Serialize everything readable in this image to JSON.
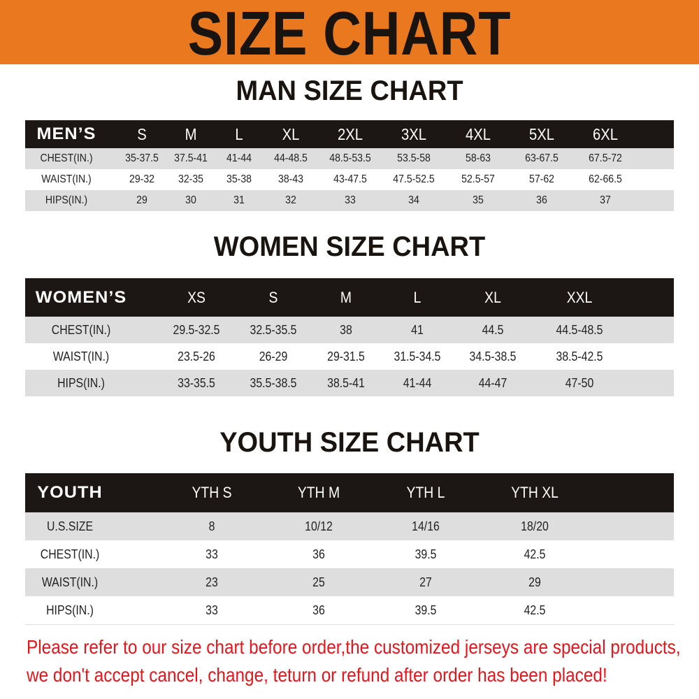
{
  "banner": {
    "title": "SIZE CHART",
    "color": "#E9781E"
  },
  "men": {
    "title": "MAN SIZE CHART",
    "header": [
      "MEN’S",
      "S",
      "M",
      "L",
      "XL",
      "2XL",
      "3XL",
      "4XL",
      "5XL",
      "6XL"
    ],
    "rows": [
      [
        "CHEST(IN.)",
        "35-37.5",
        "37.5-41",
        "41-44",
        "44-48.5",
        "48.5-53.5",
        "53.5-58",
        "58-63",
        "63-67.5",
        "67.5-72"
      ],
      [
        "WAIST(IN.)",
        "29-32",
        "32-35",
        "35-38",
        "38-43",
        "43-47.5",
        "47.5-52.5",
        "52.5-57",
        "57-62",
        "62-66.5"
      ],
      [
        "HIPS(IN.)",
        "29",
        "30",
        "31",
        "32",
        "33",
        "34",
        "35",
        "36",
        "37"
      ]
    ]
  },
  "women": {
    "title": "WOMEN SIZE CHART",
    "header": [
      "WOMEN’S",
      "XS",
      "S",
      "M",
      "L",
      "XL",
      "XXL"
    ],
    "rows": [
      [
        "CHEST(IN.)",
        "29.5-32.5",
        "32.5-35.5",
        "38",
        "41",
        "44.5",
        "44.5-48.5"
      ],
      [
        "WAIST(IN.)",
        "23.5-26",
        "26-29",
        "29-31.5",
        "31.5-34.5",
        "34.5-38.5",
        "38.5-42.5"
      ],
      [
        "HIPS(IN.)",
        "33-35.5",
        "35.5-38.5",
        "38.5-41",
        "41-44",
        "44-47",
        "47-50"
      ]
    ]
  },
  "youth": {
    "title": "YOUTH SIZE CHART",
    "header": [
      "YOUTH",
      "YTH S",
      "YTH M",
      "YTH L",
      "YTH XL"
    ],
    "rows": [
      [
        "U.S.SIZE",
        "8",
        "10/12",
        "14/16",
        "18/20"
      ],
      [
        "CHEST(IN.)",
        "33",
        "36",
        "39.5",
        "42.5"
      ],
      [
        "WAIST(IN.)",
        "23",
        "25",
        "27",
        "29"
      ],
      [
        "HIPS(IN.)",
        "33",
        "36",
        "39.5",
        "42.5"
      ]
    ]
  },
  "notice": {
    "line1": "Please refer to our size chart before order,the customized jerseys are special products,",
    "line2": "we don't accept cancel, change, teturn or refund after order has been placed!",
    "color": "#E8141B"
  }
}
